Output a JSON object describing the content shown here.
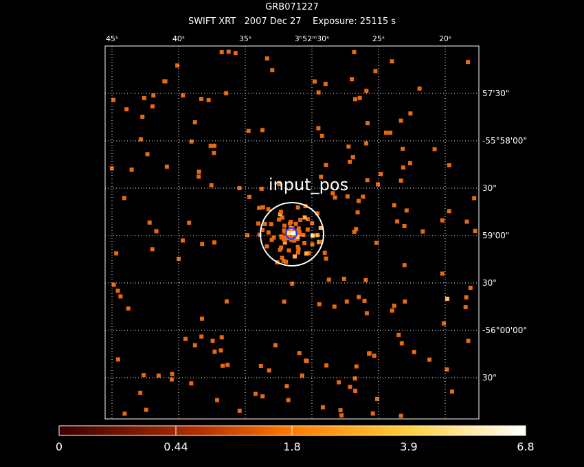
{
  "header": {
    "object": "GRB071227",
    "line": "SWIFT XRT   2007 Dec 27    Exposure: 25115 s"
  },
  "ra_labels": [
    "45ˢ",
    "40ˢ",
    "35ˢ",
    "3ʰ52ᵐ30ˢ",
    "25ˢ",
    "20ˢ"
  ],
  "dec_labels": [
    "57'30\"",
    "-55°58'00\"",
    "30\"",
    "59'00\"",
    "30\"",
    "-56°00'00\"",
    "30\""
  ],
  "region": {
    "label": "input_pos"
  },
  "colorbar": {
    "labels": [
      "0",
      "0.44",
      "1.8",
      "3.9",
      "6.8"
    ]
  }
}
